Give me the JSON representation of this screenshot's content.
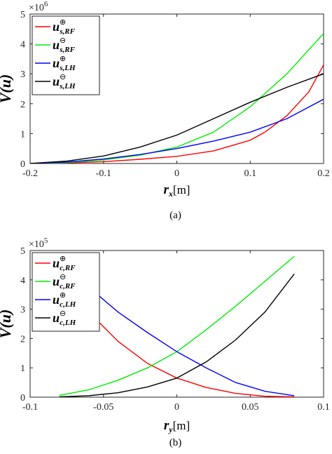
{
  "chart_data": [
    {
      "type": "line",
      "caption": "(a)",
      "xlabel_var": "r",
      "xlabel_sub": "x",
      "xlabel_unit": "[m]",
      "ylabel": "V(u)",
      "y_exponent_text": "×10",
      "y_exponent_power": "6",
      "xlim": [
        -0.2,
        0.2
      ],
      "ylim": [
        0,
        5
      ],
      "xticks": [
        "-0.2",
        "-0.1",
        "0",
        "0.1",
        "0.2"
      ],
      "yticks": [
        "0",
        "1",
        "2",
        "3",
        "4",
        "5"
      ],
      "legend_position": "top-left",
      "series": [
        {
          "name": "u",
          "sub": "s,RF",
          "sup": "⊕",
          "color": "#ff0000",
          "x": [
            -0.2,
            -0.15,
            -0.1,
            -0.05,
            0,
            0.05,
            0.1,
            0.12,
            0.15,
            0.18,
            0.2
          ],
          "y": [
            0,
            0.02,
            0.06,
            0.14,
            0.24,
            0.42,
            0.78,
            1.05,
            1.6,
            2.4,
            3.3
          ]
        },
        {
          "name": "u",
          "sub": "s,RF",
          "sup": "⊖",
          "color": "#00ee00",
          "x": [
            -0.2,
            -0.15,
            -0.1,
            -0.05,
            0,
            0.05,
            0.1,
            0.15,
            0.2
          ],
          "y": [
            0,
            0.03,
            0.12,
            0.28,
            0.55,
            1.05,
            1.9,
            3.0,
            4.35
          ]
        },
        {
          "name": "u",
          "sub": "s,LH",
          "sup": "⊕",
          "color": "#0000ff",
          "x": [
            -0.2,
            -0.15,
            -0.1,
            -0.05,
            0,
            0.05,
            0.1,
            0.15,
            0.2
          ],
          "y": [
            0,
            0.05,
            0.15,
            0.3,
            0.5,
            0.75,
            1.05,
            1.5,
            2.15
          ]
        },
        {
          "name": "u",
          "sub": "s,LH",
          "sup": "⊖",
          "color": "#000000",
          "x": [
            -0.2,
            -0.15,
            -0.1,
            -0.05,
            0,
            0.05,
            0.1,
            0.15,
            0.2
          ],
          "y": [
            0,
            0.08,
            0.25,
            0.55,
            0.95,
            1.5,
            2.05,
            2.55,
            3.0
          ]
        }
      ]
    },
    {
      "type": "line",
      "caption": "(b)",
      "xlabel_var": "r",
      "xlabel_sub": "y",
      "xlabel_unit": "[m]",
      "ylabel": "V(u)",
      "y_exponent_text": "×10",
      "y_exponent_power": "5",
      "xlim": [
        -0.1,
        0.1
      ],
      "ylim": [
        0,
        5
      ],
      "xticks": [
        "-0.1",
        "-0.05",
        "0",
        "0.05",
        "0.1"
      ],
      "yticks": [
        "0",
        "1",
        "2",
        "3",
        "4",
        "5"
      ],
      "legend_position": "top-left",
      "series": [
        {
          "name": "u",
          "sub": "c,RF",
          "sup": "⊕",
          "color": "#ff0000",
          "x": [
            -0.08,
            -0.06,
            -0.04,
            -0.02,
            0,
            0.02,
            0.04,
            0.06,
            0.08
          ],
          "y": [
            4.25,
            2.9,
            1.9,
            1.15,
            0.65,
            0.33,
            0.13,
            0.03,
            0.01
          ]
        },
        {
          "name": "u",
          "sub": "c,RF",
          "sup": "⊖",
          "color": "#00ee00",
          "x": [
            -0.08,
            -0.06,
            -0.04,
            -0.02,
            0,
            0.02,
            0.04,
            0.06,
            0.08
          ],
          "y": [
            0.06,
            0.25,
            0.58,
            1.0,
            1.55,
            2.3,
            3.1,
            3.95,
            4.8
          ]
        },
        {
          "name": "u",
          "sub": "c,LH",
          "sup": "⊕",
          "color": "#0000ff",
          "x": [
            -0.08,
            -0.06,
            -0.04,
            -0.02,
            0,
            0.02,
            0.04,
            0.06,
            0.08
          ],
          "y": [
            4.0,
            3.75,
            2.9,
            2.2,
            1.55,
            1.0,
            0.5,
            0.2,
            0.05
          ]
        },
        {
          "name": "u",
          "sub": "c,LH",
          "sup": "⊖",
          "color": "#000000",
          "x": [
            -0.08,
            -0.06,
            -0.04,
            -0.02,
            0,
            0.02,
            0.04,
            0.06,
            0.08
          ],
          "y": [
            0.01,
            0.05,
            0.15,
            0.35,
            0.65,
            1.2,
            1.95,
            2.9,
            4.2
          ]
        }
      ]
    }
  ]
}
